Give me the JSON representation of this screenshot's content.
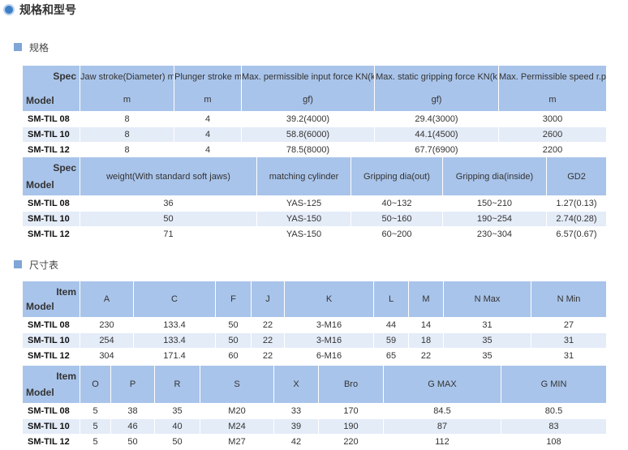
{
  "header": {
    "title": "规格和型号"
  },
  "sections": [
    {
      "title": "规格",
      "tables": [
        {
          "corner": [
            "Spec",
            "Model"
          ],
          "columns": [
            [
              "Jaw stroke(Diameter) m",
              "m"
            ],
            [
              "Plunger stroke m",
              "m"
            ],
            [
              "Max. permissible input force KN(k",
              "gf)"
            ],
            [
              "Max. static gripping force KN(k",
              "gf)"
            ],
            [
              "Max. Permissible speed r.p.",
              "m"
            ]
          ],
          "rows": [
            [
              "SM-TIL 08",
              "8",
              "4",
              "39.2(4000)",
              "29.4(3000)",
              "3000"
            ],
            [
              "SM-TIL 10",
              "8",
              "4",
              "58.8(6000)",
              "44.1(4500)",
              "2600"
            ],
            [
              "SM-TIL 12",
              "8",
              "4",
              "78.5(8000)",
              "67.7(6900)",
              "2200"
            ]
          ]
        },
        {
          "corner": [
            "Spec",
            "Model"
          ],
          "columns": [
            [
              "weight(With standard soft jaws)"
            ],
            [
              "matching cylinder"
            ],
            [
              "Gripping dia(out)"
            ],
            [
              "Gripping dia(inside)"
            ],
            [
              "GD2"
            ]
          ],
          "rows": [
            [
              "SM-TIL 08",
              "36",
              "YAS-125",
              "40~132",
              "150~210",
              "1.27(0.13)"
            ],
            [
              "SM-TIL 10",
              "50",
              "YAS-150",
              "50~160",
              "190~254",
              "2.74(0.28)"
            ],
            [
              "SM-TIL 12",
              "71",
              "YAS-150",
              "60~200",
              "230~304",
              "6.57(0.67)"
            ]
          ]
        }
      ]
    },
    {
      "title": "尺寸表",
      "tables": [
        {
          "corner": [
            "Item",
            "Model"
          ],
          "columns": [
            [
              "A"
            ],
            [
              "C"
            ],
            [
              "F"
            ],
            [
              "J"
            ],
            [
              "K"
            ],
            [
              "L"
            ],
            [
              "M"
            ],
            [
              "N Max"
            ],
            [
              "N Min"
            ]
          ],
          "rows": [
            [
              "SM-TIL 08",
              "230",
              "133.4",
              "50",
              "22",
              "3-M16",
              "44",
              "14",
              "31",
              "27"
            ],
            [
              "SM-TIL 10",
              "254",
              "133.4",
              "50",
              "22",
              "3-M16",
              "59",
              "18",
              "35",
              "31"
            ],
            [
              "SM-TIL 12",
              "304",
              "171.4",
              "60",
              "22",
              "6-M16",
              "65",
              "22",
              "35",
              "31"
            ]
          ]
        },
        {
          "corner": [
            "Item",
            "Model"
          ],
          "columns": [
            [
              "O"
            ],
            [
              "P"
            ],
            [
              "R"
            ],
            [
              "S"
            ],
            [
              "X"
            ],
            [
              "Bro"
            ],
            [
              "G MAX"
            ],
            [
              "G MIN"
            ]
          ],
          "rows": [
            [
              "SM-TIL 08",
              "5",
              "38",
              "35",
              "M20",
              "33",
              "170",
              "84.5",
              "80.5"
            ],
            [
              "SM-TIL 10",
              "5",
              "46",
              "40",
              "M24",
              "39",
              "190",
              "87",
              "83"
            ],
            [
              "SM-TIL 12",
              "5",
              "50",
              "50",
              "M27",
              "42",
              "220",
              "112",
              "108"
            ]
          ]
        }
      ]
    }
  ]
}
